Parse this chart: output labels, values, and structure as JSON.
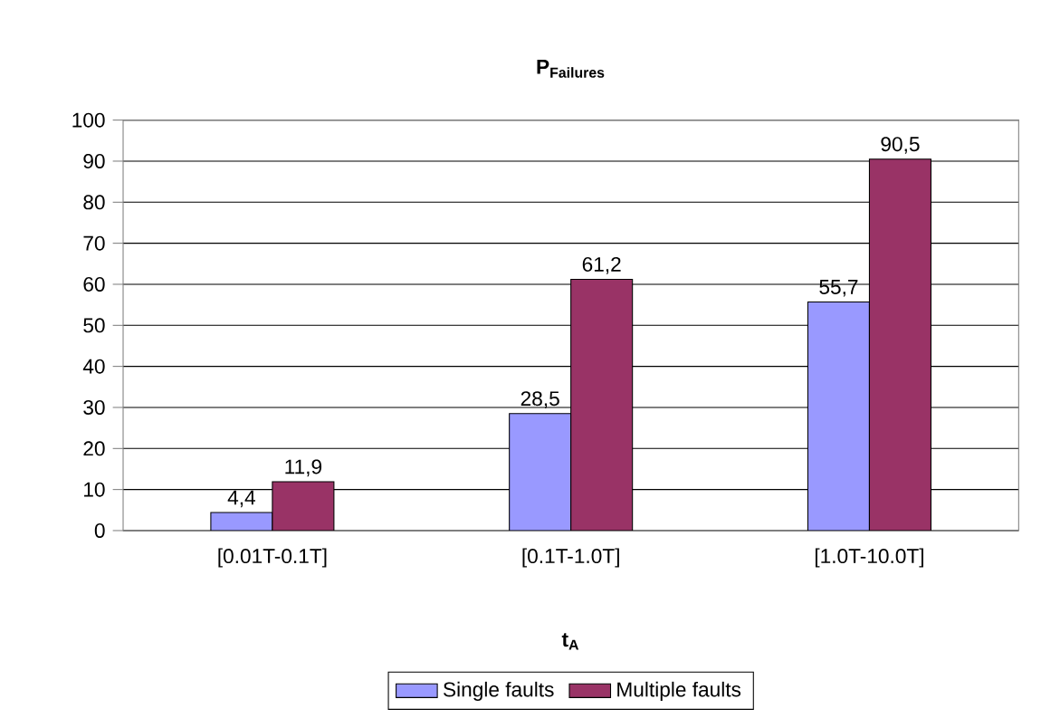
{
  "chart_data": {
    "type": "bar",
    "title": "P$_{Failures}$",
    "xlabel": "t$_{A}$",
    "categories": [
      "[0.01T-0.1T]",
      "[0.1T-1.0T]",
      "[1.0T-10.0T]"
    ],
    "series": [
      {
        "name": "Single faults",
        "color": "#9999ff",
        "values": [
          4.4,
          28.5,
          55.7
        ],
        "value_labels": [
          "4,4",
          "28,5",
          "55,7"
        ]
      },
      {
        "name": "Multiple faults",
        "color": "#993366",
        "values": [
          11.9,
          61.2,
          90.5
        ],
        "value_labels": [
          "11,9",
          "61,2",
          "90,5"
        ]
      }
    ],
    "ylim": [
      0,
      100
    ],
    "yticks": [
      0,
      10,
      20,
      30,
      40,
      50,
      60,
      70,
      80,
      90,
      100
    ],
    "grid": "y",
    "legend": "bottom"
  }
}
